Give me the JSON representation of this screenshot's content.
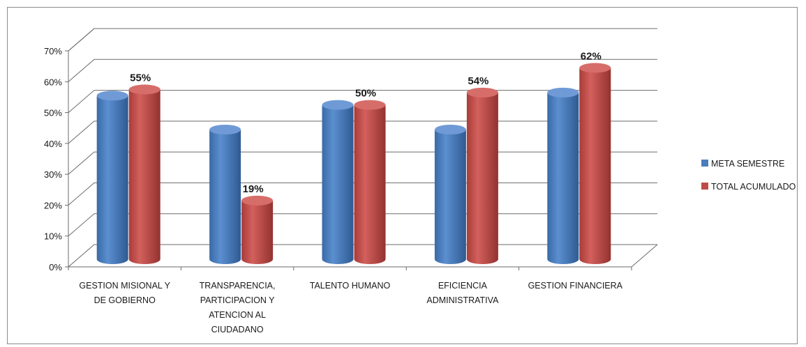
{
  "chart_data": {
    "type": "bar",
    "title": "",
    "xlabel": "",
    "ylabel": "",
    "categories": [
      [
        "GESTION MISIONAL Y",
        "DE GOBIERNO"
      ],
      [
        "TRANSPARENCIA,",
        "PARTICIPACION Y",
        "ATENCION AL",
        "CIUDADANO"
      ],
      [
        "TALENTO HUMANO"
      ],
      [
        "EFICIENCIA",
        "ADMINISTRATIVA"
      ],
      [
        "GESTION FINANCIERA"
      ]
    ],
    "series": [
      {
        "name": "META SEMESTRE",
        "color": "#4a7ebb",
        "values": [
          53,
          42,
          50,
          42,
          54
        ],
        "labels": [
          "",
          "",
          "",
          "",
          ""
        ]
      },
      {
        "name": "TOTAL ACUMULADO",
        "color": "#be4b48",
        "values": [
          55,
          19,
          50,
          54,
          62
        ],
        "labels": [
          "55%",
          "19%",
          "50%",
          "54%",
          "62%"
        ]
      }
    ],
    "ylim": [
      0,
      70
    ],
    "yticks": [
      "0%",
      "10%",
      "20%",
      "30%",
      "40%",
      "50%",
      "60%",
      "70%"
    ],
    "grid": true,
    "style": "3d-cylinder",
    "legend_position": "right"
  }
}
